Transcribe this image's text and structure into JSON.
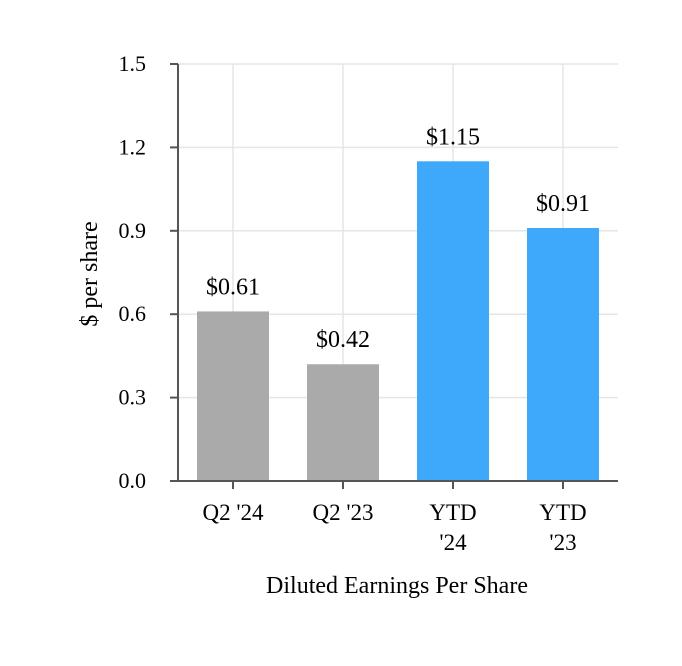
{
  "chart_data": {
    "type": "bar",
    "title": "",
    "xlabel": "Diluted Earnings Per Share",
    "ylabel": "$ per share",
    "ylim": [
      0,
      1.5
    ],
    "yticks": [
      "0.0",
      "0.3",
      "0.6",
      "0.9",
      "1.2",
      "1.5"
    ],
    "ytick_values": [
      0,
      0.3,
      0.6,
      0.9,
      1.2,
      1.5
    ],
    "grid": true,
    "categories": [
      [
        "Q2 '24"
      ],
      [
        "Q2 '23"
      ],
      [
        "YTD",
        "'24"
      ],
      [
        "YTD",
        "'23"
      ]
    ],
    "values": [
      0.61,
      0.42,
      1.15,
      0.91
    ],
    "data_labels": [
      "$0.61",
      "$0.42",
      "$1.15",
      "$0.91"
    ],
    "colors": [
      "#aaaaaa",
      "#aaaaaa",
      "#3ea9fb",
      "#3ea9fb"
    ]
  }
}
